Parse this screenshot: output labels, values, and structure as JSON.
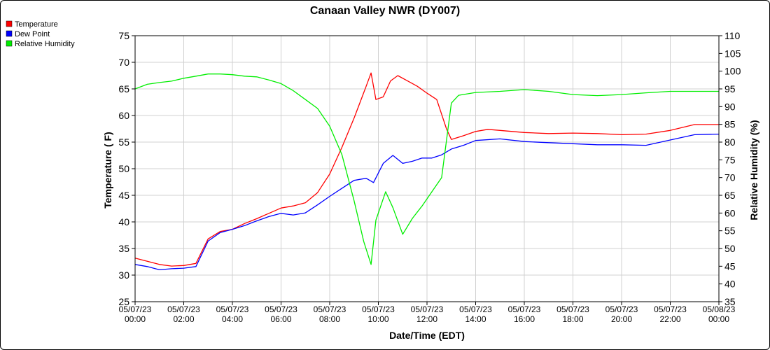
{
  "chart_data": {
    "type": "line",
    "title": "Canaan Valley NWR (DY007)",
    "xlabel": "Date/Time (EDT)",
    "ylabel_left": "Temperature ( F)",
    "ylabel_right": "Relative Humidity (%)",
    "ylim_left": [
      25,
      75
    ],
    "yticks_left": [
      25,
      30,
      35,
      40,
      45,
      50,
      55,
      60,
      65,
      70,
      75
    ],
    "ylim_right": [
      35,
      110
    ],
    "yticks_right": [
      35,
      40,
      45,
      50,
      55,
      60,
      65,
      70,
      75,
      80,
      85,
      90,
      95,
      100,
      105,
      110
    ],
    "xlim_hours": [
      0,
      24
    ],
    "xticks": [
      {
        "date": "05/07/23",
        "time": "00:00"
      },
      {
        "date": "05/07/23",
        "time": "02:00"
      },
      {
        "date": "05/07/23",
        "time": "04:00"
      },
      {
        "date": "05/07/23",
        "time": "06:00"
      },
      {
        "date": "05/07/23",
        "time": "08:00"
      },
      {
        "date": "05/07/23",
        "time": "10:00"
      },
      {
        "date": "05/07/23",
        "time": "12:00"
      },
      {
        "date": "05/07/23",
        "time": "14:00"
      },
      {
        "date": "05/07/23",
        "time": "16:00"
      },
      {
        "date": "05/07/23",
        "time": "18:00"
      },
      {
        "date": "05/07/23",
        "time": "20:00"
      },
      {
        "date": "05/07/23",
        "time": "22:00"
      },
      {
        "date": "05/08/23",
        "time": "00:00"
      }
    ],
    "grid": true,
    "legend_position": "top-left",
    "series": [
      {
        "name": "Temperature",
        "axis": "left",
        "color": "#ff0000",
        "x_hours": [
          0,
          0.5,
          1,
          1.5,
          2,
          2.5,
          3,
          3.5,
          4,
          4.5,
          5,
          5.5,
          6,
          6.5,
          7,
          7.5,
          8,
          8.5,
          9,
          9.5,
          9.7,
          9.9,
          10.2,
          10.5,
          10.8,
          11.2,
          11.6,
          12,
          12.4,
          12.8,
          13,
          13.5,
          14,
          14.5,
          15,
          16,
          17,
          18,
          19,
          20,
          21,
          22,
          23,
          24
        ],
        "values": [
          33.2,
          32.6,
          32,
          31.7,
          31.8,
          32.2,
          36.8,
          38.2,
          38.6,
          39.7,
          40.6,
          41.6,
          42.6,
          43,
          43.6,
          45.5,
          49,
          54,
          59.5,
          65.5,
          68,
          63,
          63.5,
          66.5,
          67.5,
          66.5,
          65.5,
          64.2,
          63,
          57.5,
          55.5,
          56.2,
          57,
          57.4,
          57.2,
          56.8,
          56.6,
          56.7,
          56.6,
          56.4,
          56.5,
          57.2,
          58.3,
          58.3
        ]
      },
      {
        "name": "Dew Point",
        "axis": "left",
        "color": "#0000ff",
        "x_hours": [
          0,
          0.5,
          1,
          1.5,
          2,
          2.5,
          3,
          3.5,
          4,
          4.5,
          5,
          5.5,
          6,
          6.5,
          7,
          7.5,
          8,
          8.5,
          9,
          9.5,
          9.8,
          10.2,
          10.6,
          11,
          11.4,
          11.8,
          12.2,
          12.6,
          13,
          13.5,
          14,
          15,
          16,
          17,
          18,
          19,
          20,
          21,
          22,
          23,
          24
        ],
        "values": [
          32,
          31.6,
          31,
          31.2,
          31.3,
          31.6,
          36.4,
          38,
          38.6,
          39.3,
          40.2,
          41,
          41.6,
          41.3,
          41.7,
          43.2,
          44.8,
          46.3,
          47.8,
          48.2,
          47.4,
          51,
          52.5,
          51,
          51.4,
          52,
          52,
          52.6,
          53.7,
          54.4,
          55.3,
          55.6,
          55.1,
          54.9,
          54.7,
          54.5,
          54.5,
          54.4,
          55.4,
          56.4,
          56.5
        ]
      },
      {
        "name": "Relative Humidity",
        "axis": "right",
        "color": "#00ee00",
        "x_hours": [
          0,
          0.5,
          1,
          1.5,
          2,
          2.5,
          3,
          3.5,
          4,
          4.5,
          5,
          5.5,
          6,
          6.5,
          7,
          7.5,
          8,
          8.5,
          9,
          9.4,
          9.7,
          9.9,
          10.3,
          10.6,
          11,
          11.4,
          11.8,
          12.2,
          12.6,
          13,
          13.3,
          14,
          15,
          16,
          17,
          18,
          19,
          20,
          21,
          22,
          23,
          24
        ],
        "values": [
          95,
          96.3,
          96.8,
          97.2,
          98,
          98.6,
          99.2,
          99.2,
          99,
          98.6,
          98.4,
          97.5,
          96.5,
          94.5,
          92,
          89.5,
          84.5,
          76.5,
          63.5,
          52,
          45.5,
          58,
          66,
          61.5,
          54,
          58.5,
          62,
          66,
          70,
          91,
          93.2,
          94,
          94.3,
          94.8,
          94.3,
          93.4,
          93.1,
          93.4,
          93.9,
          94.3,
          94.3,
          94.3
        ]
      }
    ]
  }
}
